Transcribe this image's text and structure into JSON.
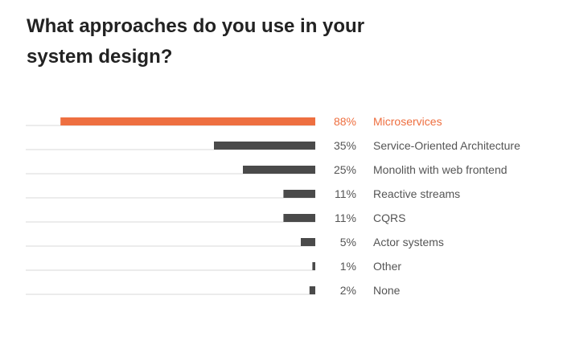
{
  "chart_data": {
    "type": "bar",
    "orientation": "horizontal",
    "title": "What approaches do you use in your system design?",
    "categories": [
      "Microservices",
      "Service-Oriented Architecture",
      "Monolith with web frontend",
      "Reactive streams",
      "CQRS",
      "Actor systems",
      "Other",
      "None"
    ],
    "values": [
      88,
      35,
      25,
      11,
      11,
      5,
      1,
      2
    ],
    "value_labels": [
      "88%",
      "35%",
      "25%",
      "11%",
      "11%",
      "5%",
      "1%",
      "2%"
    ],
    "xlim": [
      0,
      100
    ],
    "grid": false,
    "highlight_index": 0,
    "colors": {
      "highlight": "#ee6f40",
      "bar": "#4a4a4a",
      "track": "#d9d9d9",
      "text": "#555555"
    }
  }
}
